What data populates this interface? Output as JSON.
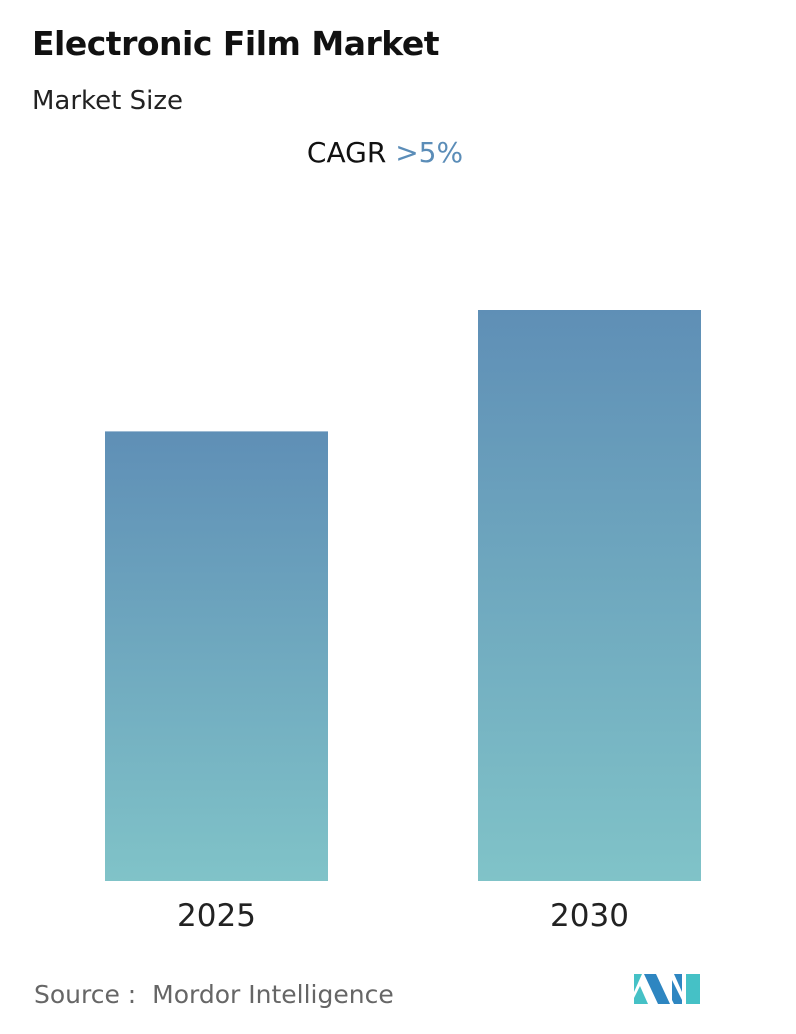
{
  "chart_data": {
    "type": "bar",
    "title": "Electronic Film Market",
    "subtitle": "Market Size",
    "categories": [
      "2025",
      "2030"
    ],
    "values": [
      1.0,
      1.27
    ],
    "value_note_visible": false,
    "annotation": {
      "label": "CAGR",
      "value": ">5%"
    },
    "colors": {
      "bar_top": "#5f8fb6",
      "bar_bottom": "#80c3c8",
      "accent": "#5b8db8"
    },
    "grid": false,
    "legend": "none"
  },
  "source": {
    "label": "Source :",
    "name": "Mordor Intelligence"
  },
  "logo": {
    "name": "mordor-intelligence-logo"
  }
}
